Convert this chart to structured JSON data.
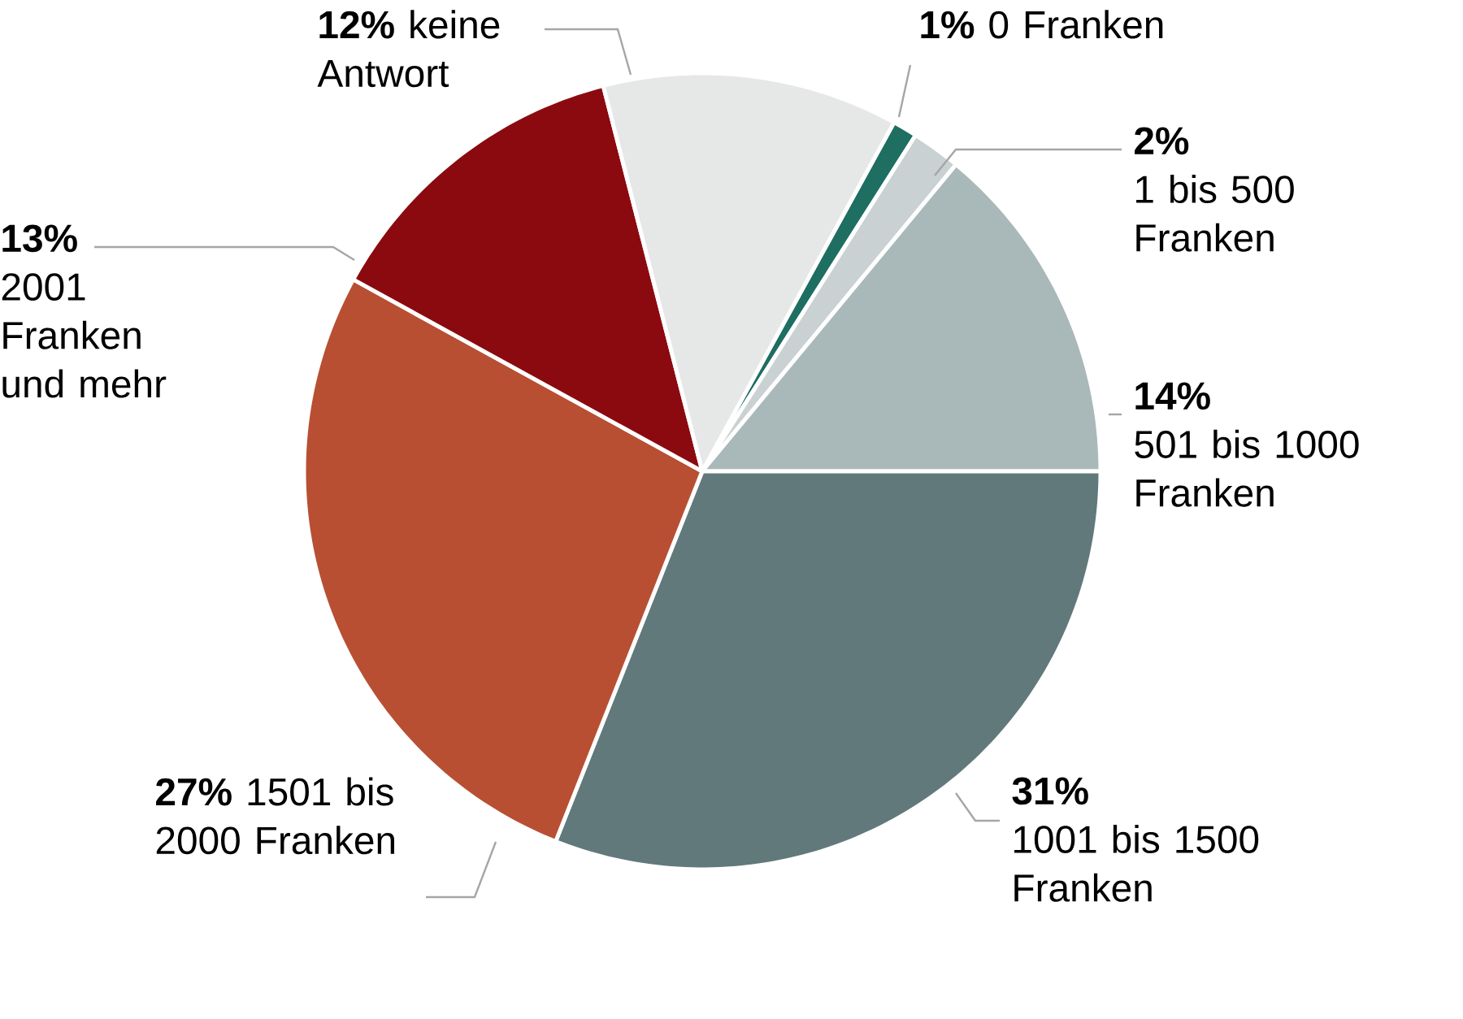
{
  "chart_data": {
    "type": "pie",
    "categories": [
      "0 Franken",
      "1 bis 500 Franken",
      "501 bis 1000 Franken",
      "1001 bis 1500 Franken",
      "1501 bis 2000 Franken",
      "2001 Franken und mehr",
      "keine Antwort"
    ],
    "values": [
      1,
      2,
      14,
      31,
      27,
      13,
      12
    ],
    "colors": [
      "#1f6e62",
      "#c9d1d2",
      "#a9b8b9",
      "#62797b",
      "#b84f33",
      "#8b0a0f",
      "#e6e8e8"
    ],
    "value_labels": [
      "1%",
      "2%",
      "14%",
      "31%",
      "27%",
      "13%",
      "12%"
    ]
  }
}
